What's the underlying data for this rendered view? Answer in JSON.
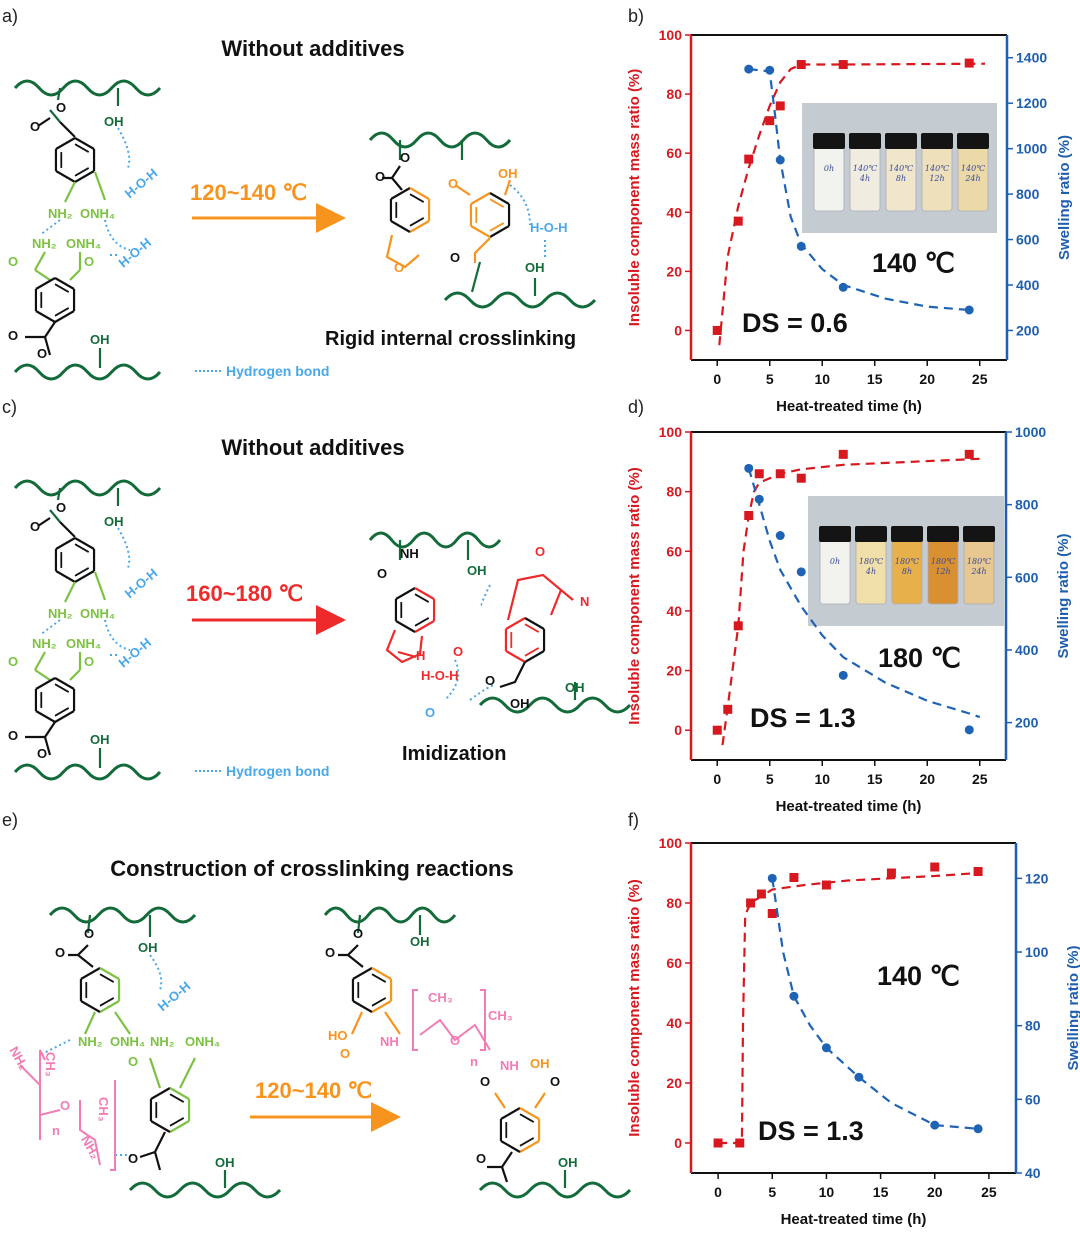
{
  "panel_labels": [
    "a)",
    "b)",
    "c)",
    "d)",
    "e)",
    "f)"
  ],
  "colors": {
    "dark_green": "#146b3a",
    "light_green": "#7cc242",
    "blue_hbond": "#4aa8e8",
    "orange": "#f7941d",
    "red": "#ee2a2a",
    "pink": "#f27cb4",
    "left_axis": "#d71920",
    "right_axis": "#1f5fad"
  },
  "panel_a": {
    "title": "Without additives",
    "condition": "120~140 ℃",
    "product_label": "Rigid internal crosslinking",
    "legend": "Hydrogen bond",
    "atoms": [
      "O",
      "O",
      "OH",
      "H-O-H",
      "NH₂",
      "ONH₄",
      "NH₂",
      "ONH₄",
      "H-O-H",
      "O",
      "O",
      "O",
      "OH",
      "O",
      "O",
      "O",
      "OH",
      "O",
      "H-O-H",
      "OH",
      "O",
      "O"
    ]
  },
  "panel_c": {
    "title": "Without additives",
    "condition": "160~180 ℃",
    "product_label": "Imidization",
    "legend": "Hydrogen bond",
    "atoms": [
      "O",
      "O",
      "OH",
      "H-O-H",
      "NH₂",
      "ONH₄",
      "NH₂",
      "ONH₄",
      "H-O-H",
      "O",
      "O",
      "O",
      "OH",
      "O",
      "O",
      "NH",
      "O",
      "N",
      "H",
      "O",
      "H-O-H",
      "O",
      "O",
      "OH"
    ]
  },
  "panel_e": {
    "title": "Construction of crosslinking reactions",
    "condition": "120~140 ℃",
    "atoms": [
      "O",
      "O",
      "OH",
      "H-O-H",
      "NH₂",
      "ONH₄",
      "NH₂",
      "CH₃",
      "O",
      "n",
      "CH₃",
      "NH₂",
      "NH₂",
      "ONH₄",
      "O",
      "O",
      "OH",
      "O",
      "O",
      "OH",
      "HO",
      "O",
      "NH",
      "CH₃",
      "O",
      "n",
      "CH₃",
      "NH",
      "OH",
      "O",
      "O",
      "O",
      "OH"
    ]
  },
  "chart_data": [
    {
      "type": "scatter",
      "panel": "b",
      "xlabel": "Heat-treated time (h)",
      "ylabel": "Insoluble component mass ratio (%)",
      "y2label": "Swelling ratio (%)",
      "xlim": [
        -2.5,
        27.6
      ],
      "ylim": [
        -10,
        100
      ],
      "y2lim": [
        70,
        1500
      ],
      "xticks": [
        0,
        5,
        10,
        15,
        20,
        25
      ],
      "yticks": [
        0,
        20,
        40,
        60,
        80,
        100
      ],
      "y2ticks": [
        200,
        400,
        600,
        800,
        1000,
        1200,
        1400
      ],
      "annotations": {
        "temperature": "140 ℃",
        "ds": "DS = 0.6"
      },
      "inset_labels": [
        "0h",
        "140℃ 4h",
        "140℃ 8h",
        "140℃ 12h",
        "140℃ 24h"
      ],
      "series": [
        {
          "axis": "left",
          "marker": "square",
          "color": "#d7191f",
          "x": [
            0,
            2,
            3,
            5,
            6,
            8,
            12,
            24
          ],
          "y": [
            0,
            37,
            58,
            71,
            76,
            90,
            90,
            90.5
          ],
          "fit": [
            [
              0.2,
              -5
            ],
            [
              1,
              25
            ],
            [
              2,
              42
            ],
            [
              3,
              55
            ],
            [
              4,
              66
            ],
            [
              5,
              76
            ],
            [
              6,
              84
            ],
            [
              7,
              88.5
            ],
            [
              8,
              90
            ],
            [
              12,
              90
            ],
            [
              25.5,
              90.3
            ]
          ]
        },
        {
          "axis": "right",
          "marker": "circle",
          "color": "#1f63b5",
          "x": [
            3,
            5,
            6,
            8,
            12,
            24
          ],
          "y": [
            1350,
            1345,
            950,
            570,
            390,
            290
          ],
          "fit": [
            [
              3,
              1350
            ],
            [
              5,
              1340
            ],
            [
              5.5,
              1150
            ],
            [
              6,
              950
            ],
            [
              7,
              700
            ],
            [
              8,
              580
            ],
            [
              10,
              470
            ],
            [
              12,
              400
            ],
            [
              16,
              340
            ],
            [
              20,
              305
            ],
            [
              24,
              290
            ]
          ]
        }
      ]
    },
    {
      "type": "scatter",
      "panel": "d",
      "xlabel": "Heat-treated time (h)",
      "ylabel": "Insoluble component mass ratio (%)",
      "y2label": "Swelling ratio (%)",
      "xlim": [
        -2.5,
        27.5
      ],
      "ylim": [
        -10,
        100
      ],
      "y2lim": [
        97,
        1000
      ],
      "xticks": [
        0,
        5,
        10,
        15,
        20,
        25
      ],
      "yticks": [
        0,
        20,
        40,
        60,
        80,
        100
      ],
      "y2ticks": [
        200,
        400,
        600,
        800,
        1000
      ],
      "annotations": {
        "temperature": "180 ℃",
        "ds": "DS = 1.3"
      },
      "inset_labels": [
        "0h",
        "180℃ 4h",
        "180℃ 8h",
        "180℃ 12h",
        "180℃ 24h"
      ],
      "series": [
        {
          "axis": "left",
          "marker": "square",
          "color": "#d7191f",
          "x": [
            0,
            1,
            2,
            3,
            4,
            6,
            8,
            12,
            24
          ],
          "y": [
            0,
            7,
            35,
            72,
            86,
            86,
            84.5,
            92.5,
            92.5
          ],
          "fit": [
            [
              0.5,
              -5
            ],
            [
              1,
              8
            ],
            [
              2,
              35
            ],
            [
              2.5,
              60
            ],
            [
              3,
              72
            ],
            [
              3.5,
              80
            ],
            [
              4,
              83
            ],
            [
              6,
              86
            ],
            [
              8,
              87.5
            ],
            [
              12,
              89
            ],
            [
              25,
              91
            ]
          ]
        },
        {
          "axis": "right",
          "marker": "circle",
          "color": "#1f63b5",
          "x": [
            3,
            4,
            6,
            8,
            12,
            24
          ],
          "y": [
            900,
            815,
            715,
            615,
            330,
            180
          ],
          "fit": [
            [
              3,
              900
            ],
            [
              4,
              800
            ],
            [
              5,
              700
            ],
            [
              6,
              620
            ],
            [
              8,
              520
            ],
            [
              10,
              440
            ],
            [
              12,
              380
            ],
            [
              16,
              310
            ],
            [
              20,
              260
            ],
            [
              24,
              225
            ],
            [
              25,
              215
            ]
          ]
        }
      ]
    },
    {
      "type": "scatter",
      "panel": "f",
      "xlabel": "Heat-treated time (h)",
      "ylabel": "Insoluble component mass ratio (%)",
      "y2label": "Swelling ratio (%)",
      "xlim": [
        -2.5,
        27.5
      ],
      "ylim": [
        -10,
        100
      ],
      "y2lim": [
        40,
        129.6
      ],
      "xticks": [
        0,
        5,
        10,
        15,
        20,
        25
      ],
      "yticks": [
        0,
        20,
        40,
        60,
        80,
        100
      ],
      "y2ticks": [
        40,
        60,
        80,
        100,
        120
      ],
      "annotations": {
        "temperature": "140 ℃",
        "ds": "DS = 1.3"
      },
      "series": [
        {
          "axis": "left",
          "marker": "square",
          "color": "#d7191f",
          "x": [
            0,
            2,
            3,
            4,
            5,
            7,
            10,
            16,
            20,
            24
          ],
          "y": [
            0,
            0,
            80,
            83,
            76.5,
            88.5,
            86,
            90,
            92,
            90.5
          ],
          "fit": [
            [
              0,
              0
            ],
            [
              2.2,
              0
            ],
            [
              2.3,
              40
            ],
            [
              2.5,
              76
            ],
            [
              3,
              80
            ],
            [
              5,
              84.5
            ],
            [
              8,
              86
            ],
            [
              12,
              87.5
            ],
            [
              20,
              89
            ],
            [
              24,
              90
            ]
          ]
        },
        {
          "axis": "right",
          "marker": "circle",
          "color": "#1f63b5",
          "x": [
            5,
            7,
            10,
            13,
            20,
            24
          ],
          "y": [
            120,
            88,
            74,
            66,
            53,
            52
          ],
          "fit": [
            [
              5,
              120
            ],
            [
              5.5,
              110
            ],
            [
              6,
              100
            ],
            [
              7,
              88
            ],
            [
              8.5,
              80
            ],
            [
              10,
              74
            ],
            [
              13,
              66
            ],
            [
              16,
              59
            ],
            [
              20,
              53
            ],
            [
              24,
              52
            ]
          ]
        }
      ]
    }
  ]
}
